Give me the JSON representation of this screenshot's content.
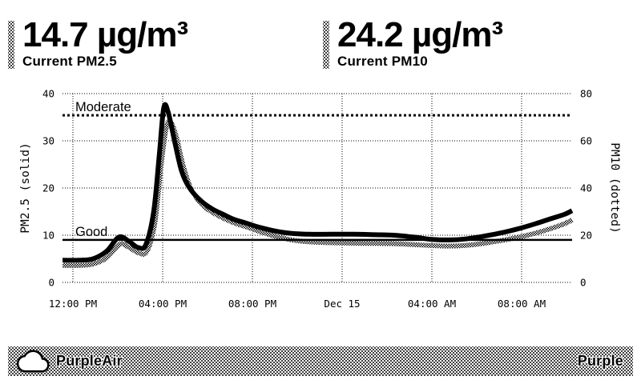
{
  "header": {
    "pm25": {
      "value_text": "14.7 µg/m³",
      "label": "Current PM2.5"
    },
    "pm10": {
      "value_text": "24.2 µg/m³",
      "label": "Current PM10"
    }
  },
  "chart_data": {
    "type": "line",
    "title": "",
    "x_axis": {
      "tick_labels": [
        "12:00 PM",
        "04:00 PM",
        "08:00 PM",
        "Dec 15",
        "04:00 AM",
        "08:00 AM"
      ],
      "tick_hours": [
        0,
        4,
        8,
        12,
        16,
        20
      ],
      "range_hours": [
        -0.46,
        22.25
      ],
      "note_hours_zero": "12:00 PM"
    },
    "y_left": {
      "label": "PM2.5 (solid)",
      "ticks": [
        0,
        10,
        20,
        30,
        40
      ],
      "range": [
        0,
        40
      ]
    },
    "y_right": {
      "label": "PM10 (dotted)",
      "ticks": [
        0,
        20,
        40,
        60,
        80
      ],
      "range": [
        0,
        80
      ]
    },
    "grid": true,
    "thresholds": [
      {
        "name": "Moderate",
        "value": 35.4,
        "axis": "left",
        "style": "dotted"
      },
      {
        "name": "Good",
        "value": 9.0,
        "axis": "left",
        "style": "solid"
      }
    ],
    "series": [
      {
        "name": "PM2.5",
        "axis": "left",
        "style": "solid",
        "points": [
          [
            -0.46,
            4.7
          ],
          [
            0.3,
            4.7
          ],
          [
            0.9,
            5.0
          ],
          [
            1.5,
            6.6
          ],
          [
            2.05,
            9.6
          ],
          [
            2.5,
            8.7
          ],
          [
            2.9,
            7.4
          ],
          [
            3.25,
            8.0
          ],
          [
            3.6,
            15
          ],
          [
            3.85,
            27
          ],
          [
            4.05,
            37
          ],
          [
            4.25,
            36
          ],
          [
            4.55,
            29.5
          ],
          [
            4.85,
            23.5
          ],
          [
            5.2,
            20
          ],
          [
            5.7,
            17.3
          ],
          [
            6.2,
            15.6
          ],
          [
            6.7,
            14.4
          ],
          [
            7.2,
            13.3
          ],
          [
            7.7,
            12.6
          ],
          [
            8.3,
            11.7
          ],
          [
            9.0,
            10.9
          ],
          [
            9.7,
            10.4
          ],
          [
            10.5,
            10.2
          ],
          [
            11.5,
            10.2
          ],
          [
            12.5,
            10.2
          ],
          [
            13.5,
            10.1
          ],
          [
            14.3,
            10.0
          ],
          [
            15.2,
            9.6
          ],
          [
            16.0,
            9.1
          ],
          [
            16.8,
            9.0
          ],
          [
            17.5,
            9.2
          ],
          [
            18.2,
            9.7
          ],
          [
            19.0,
            10.4
          ],
          [
            19.8,
            11.3
          ],
          [
            20.6,
            12.4
          ],
          [
            21.3,
            13.5
          ],
          [
            21.9,
            14.4
          ],
          [
            22.25,
            15.2
          ]
        ]
      },
      {
        "name": "PM10",
        "axis": "right",
        "style": "dotted",
        "points": [
          [
            -0.46,
            7.2
          ],
          [
            0.3,
            7.2
          ],
          [
            0.9,
            7.8
          ],
          [
            1.5,
            10.4
          ],
          [
            2.1,
            16.2
          ],
          [
            2.5,
            14.8
          ],
          [
            2.95,
            12.4
          ],
          [
            3.3,
            13.2
          ],
          [
            3.65,
            25
          ],
          [
            3.9,
            47
          ],
          [
            4.15,
            65
          ],
          [
            4.35,
            68
          ],
          [
            4.6,
            62
          ],
          [
            4.9,
            50
          ],
          [
            5.25,
            40
          ],
          [
            5.75,
            33
          ],
          [
            6.25,
            29.5
          ],
          [
            6.75,
            27
          ],
          [
            7.25,
            25
          ],
          [
            7.75,
            23.5
          ],
          [
            8.35,
            21.5
          ],
          [
            9.05,
            19.5
          ],
          [
            9.75,
            18
          ],
          [
            10.5,
            17.2
          ],
          [
            11.5,
            16.8
          ],
          [
            12.5,
            16.6
          ],
          [
            13.5,
            16.5
          ],
          [
            14.3,
            16.4
          ],
          [
            15.2,
            16.0
          ],
          [
            16.0,
            15.6
          ],
          [
            16.8,
            15.4
          ],
          [
            17.5,
            15.7
          ],
          [
            18.2,
            16.4
          ],
          [
            19.0,
            17.6
          ],
          [
            19.8,
            19.0
          ],
          [
            20.6,
            20.8
          ],
          [
            21.3,
            22.8
          ],
          [
            21.9,
            24.8
          ],
          [
            22.25,
            26.5
          ]
        ]
      }
    ],
    "legend_position": "axis-titles"
  },
  "footer": {
    "brand": "PurpleAir",
    "right_text": "Purple"
  },
  "colors": {
    "ink": "#000000",
    "paper": "#ffffff"
  }
}
